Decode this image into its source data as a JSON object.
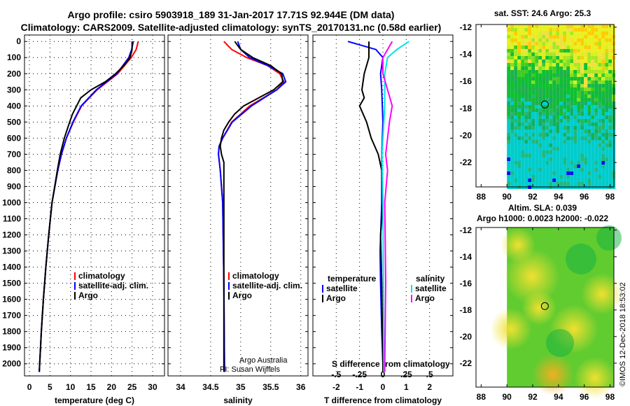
{
  "title_line1": "Argo profile: csiro 5903918_189 31-Jan-2017 17.71S 92.944E (DM data)",
  "title_line2": "Climatology: CARS2009. Satellite-adjusted climatology: synTS_20170131.nc (0.58d earlier)",
  "credit": "Argo Australia",
  "pi": "PI: Susan Wijffels",
  "timestamp": "©IMOS 12-Dec-2018 18:53:02",
  "colors": {
    "climatology": "#ff0000",
    "satellite": "#0000ff",
    "argo": "#000000",
    "sal_satellite": "#00e5e5",
    "sal_argo": "#ff00ff"
  },
  "chart_data": [
    {
      "type": "line",
      "xlabel": "temperature (deg C)",
      "ylabel": "depth",
      "xlim": [
        -1.2,
        32.9
      ],
      "ylim": [
        2075,
        -40
      ],
      "xticks": [
        0,
        5,
        10,
        15,
        20,
        25,
        30
      ],
      "yticks": [
        0,
        100,
        200,
        300,
        400,
        500,
        600,
        700,
        800,
        900,
        1000,
        1100,
        1200,
        1300,
        1400,
        1500,
        1600,
        1700,
        1800,
        1900,
        2000
      ],
      "grid": true,
      "legend": "bottom-right",
      "series": [
        {
          "name": "climatology",
          "color": "#ff0000",
          "depth": [
            0,
            50,
            100,
            200,
            300,
            400,
            500,
            600,
            700,
            800,
            1000,
            1200,
            1400,
            1600,
            1800,
            2000,
            2050
          ],
          "values": [
            26.5,
            26,
            24.8,
            21.5,
            16.5,
            12.7,
            10.7,
            9.0,
            7.8,
            6.9,
            5.5,
            4.7,
            4.0,
            3.4,
            2.9,
            2.5,
            2.4
          ]
        },
        {
          "name": "satellite-adj. clim.",
          "color": "#0000ff",
          "depth": [
            0,
            50,
            100,
            200,
            300,
            400,
            500,
            600,
            700,
            800,
            1000,
            1200,
            1400,
            1600,
            1800,
            2000,
            2050
          ],
          "values": [
            25.3,
            24.9,
            24.2,
            21.3,
            16.3,
            12.6,
            10.6,
            9.0,
            7.8,
            6.9,
            5.5,
            4.7,
            4.0,
            3.4,
            2.9,
            2.5,
            2.4
          ]
        },
        {
          "name": "Argo",
          "color": "#000000",
          "depth": [
            0,
            50,
            100,
            150,
            200,
            250,
            300,
            350,
            400,
            450,
            500,
            600,
            700,
            800,
            1000,
            1200,
            1400,
            1600,
            1800,
            2000,
            2050
          ],
          "values": [
            25,
            25,
            24.5,
            23,
            21,
            18.5,
            15,
            12.5,
            11.5,
            10.5,
            9.8,
            8.5,
            7.5,
            6.8,
            5.5,
            4.7,
            4.0,
            3.4,
            2.9,
            2.5,
            2.4
          ]
        }
      ]
    },
    {
      "type": "line",
      "xlabel": "salinity",
      "ylabel": "depth",
      "xlim": [
        33.79,
        36.12
      ],
      "ylim": [
        2075,
        -40
      ],
      "xticks": [
        34,
        34.5,
        35,
        35.5,
        36
      ],
      "grid": true,
      "legend": "bottom-right",
      "series": [
        {
          "name": "climatology",
          "color": "#ff0000",
          "depth": [
            0,
            50,
            100,
            150,
            200,
            250,
            300,
            400,
            500,
            600,
            650,
            700,
            800,
            1000,
            1500,
            2000,
            2050
          ],
          "values": [
            34.72,
            34.85,
            35.1,
            35.45,
            35.65,
            35.72,
            35.6,
            35.15,
            34.85,
            34.7,
            34.64,
            34.63,
            34.66,
            34.7,
            34.72,
            34.73,
            34.73
          ]
        },
        {
          "name": "satellite-adj. clim.",
          "color": "#0000ff",
          "depth": [
            0,
            50,
            100,
            150,
            200,
            250,
            300,
            400,
            500,
            600,
            650,
            700,
            800,
            1000,
            1500,
            2000,
            2050
          ],
          "values": [
            34.95,
            35.0,
            35.15,
            35.45,
            35.7,
            35.75,
            35.6,
            35.18,
            34.86,
            34.7,
            34.64,
            34.63,
            34.66,
            34.7,
            34.72,
            34.73,
            34.73
          ]
        },
        {
          "name": "Argo",
          "color": "#000000",
          "depth": [
            0,
            50,
            100,
            150,
            200,
            250,
            300,
            350,
            400,
            450,
            500,
            550,
            600,
            650,
            700,
            750,
            800,
            1000,
            1500,
            2000,
            2050
          ],
          "values": [
            34.9,
            35.0,
            35.2,
            35.5,
            35.68,
            35.7,
            35.55,
            35.3,
            35.05,
            34.9,
            34.8,
            34.72,
            34.68,
            34.66,
            34.68,
            34.72,
            34.72,
            34.72,
            34.72,
            34.72,
            34.72
          ]
        }
      ]
    },
    {
      "type": "line",
      "xlabel": "T difference from climatology",
      "xlabel2": "S difference from climatology",
      "ylabel": "depth",
      "xlim": [
        -3,
        3
      ],
      "ylim": [
        2075,
        -40
      ],
      "xticks": [
        -2,
        -1,
        0,
        1,
        2
      ],
      "xticks2": [
        -0.5,
        -0.25,
        0,
        0.25,
        0.5
      ],
      "s_scale": 4,
      "grid": true,
      "legend_groups": [
        "temperature",
        "salinity"
      ],
      "series": [
        {
          "name": "satellite",
          "group": "temperature",
          "color": "#0000ff",
          "depth": [
            0,
            50,
            100,
            200,
            300,
            500,
            700,
            1000,
            1300,
            1500,
            1800,
            2000,
            2050
          ],
          "values": [
            -1.5,
            -0.3,
            0,
            -0.1,
            -0.05,
            0,
            -0.05,
            -0.05,
            -0.12,
            -0.1,
            -0.05,
            0,
            0
          ]
        },
        {
          "name": "Argo",
          "group": "temperature",
          "color": "#000000",
          "depth": [
            0,
            100,
            200,
            300,
            350,
            400,
            500,
            600,
            700,
            800,
            1000,
            1200,
            1500,
            2000,
            2050
          ],
          "values": [
            -0.6,
            -0.6,
            -0.8,
            -0.9,
            -0.8,
            -1.0,
            -0.7,
            -0.5,
            -0.2,
            -0.05,
            0,
            -0.1,
            -0.05,
            0,
            0
          ]
        },
        {
          "name": "satellite",
          "group": "salinity",
          "color": "#00e5e5",
          "depth": [
            0,
            50,
            100,
            200,
            400,
            700,
            1000,
            2000,
            2050
          ],
          "values": [
            0.28,
            0.15,
            0.05,
            0.02,
            0.02,
            -0.01,
            0,
            0.01,
            0.01
          ]
        },
        {
          "name": "Argo",
          "group": "salinity",
          "color": "#ff00ff",
          "depth": [
            0,
            100,
            200,
            300,
            400,
            500,
            700,
            800,
            1000,
            1500,
            2000,
            2050
          ],
          "values": [
            0.1,
            0,
            0,
            0.05,
            0.1,
            0.07,
            0.03,
            0.05,
            0.02,
            0.03,
            0.02,
            0.02
          ]
        }
      ]
    },
    {
      "type": "heatmap",
      "title": "sat. SST: 24.6 Argo: 25.3",
      "xlim": [
        87.6,
        98.3
      ],
      "ylim": [
        -23.8,
        -11.8
      ],
      "xticks": [
        88,
        90,
        92,
        94,
        96,
        98
      ],
      "yticks": [
        -12,
        -14,
        -16,
        -18,
        -20,
        -22
      ],
      "marker": {
        "lon": 92.944,
        "lat": -17.71
      }
    },
    {
      "type": "heatmap",
      "title": "Altim. SLA: 0.039",
      "subtitle": "Argo h1000: 0.0023 h2000: -0.022",
      "xlim": [
        87.6,
        98.3
      ],
      "ylim": [
        -23.8,
        -11.8
      ],
      "xticks": [
        88,
        90,
        92,
        94,
        96,
        98
      ],
      "yticks": [
        -12,
        -14,
        -16,
        -18,
        -20,
        -22
      ],
      "marker": {
        "lon": 92.944,
        "lat": -17.71
      }
    }
  ]
}
